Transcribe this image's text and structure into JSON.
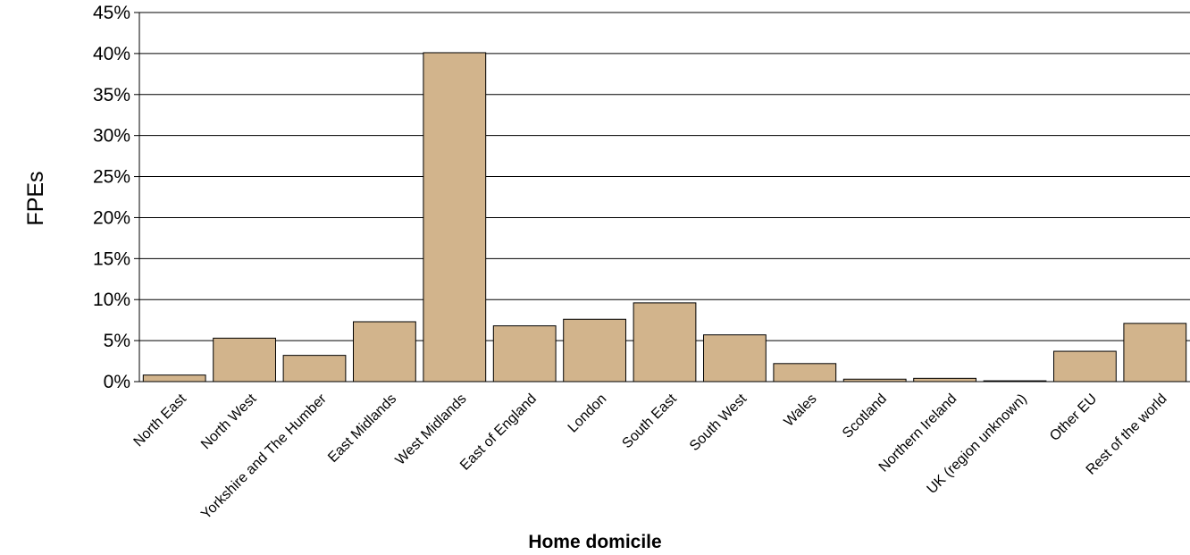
{
  "chart_data": {
    "type": "bar",
    "title": "",
    "xlabel": "Home domicile",
    "ylabel": "FPEs",
    "categories": [
      "North East",
      "North West",
      "Yorkshire and The Humber",
      "East Midlands",
      "West Midlands",
      "East of England",
      "London",
      "South East",
      "South West",
      "Wales",
      "Scotland",
      "Northern Ireland",
      "UK (region unknown)",
      "Other EU",
      "Rest of the world"
    ],
    "values": [
      0.8,
      5.3,
      3.2,
      7.3,
      40.1,
      6.8,
      7.6,
      9.6,
      5.7,
      2.2,
      0.3,
      0.4,
      0.1,
      3.7,
      7.1
    ],
    "ylim": [
      0,
      45
    ],
    "yticks": [
      0,
      5,
      10,
      15,
      20,
      25,
      30,
      35,
      40,
      45
    ],
    "ytick_labels": [
      "0%",
      "5%",
      "10%",
      "15%",
      "20%",
      "25%",
      "30%",
      "35%",
      "40%",
      "45%"
    ],
    "grid": true,
    "bar_color": "#d2b48c",
    "bar_edge_color": "#000000"
  }
}
